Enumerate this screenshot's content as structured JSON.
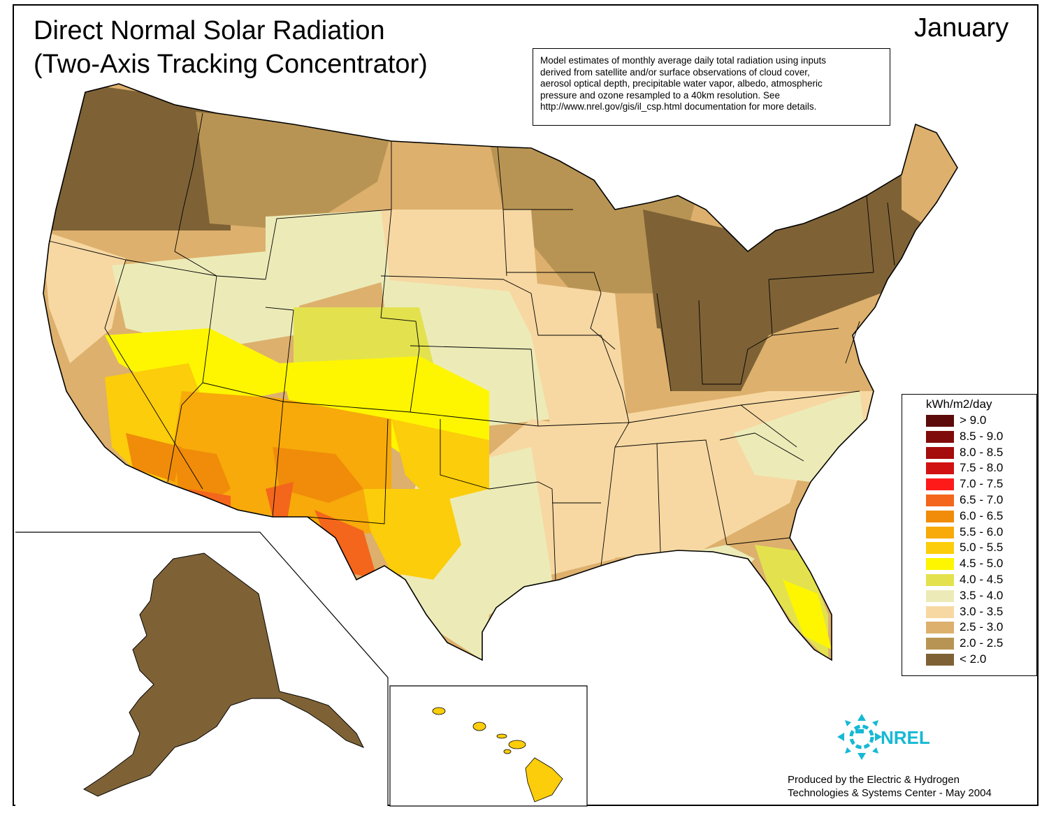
{
  "title_line1": "Direct Normal Solar Radiation",
  "title_line2": "(Two-Axis Tracking Concentrator)",
  "month": "January",
  "note_lines": [
    "Model estimates of monthly average daily total radiation using inputs",
    "derived from satellite and/or surface observations of cloud cover,",
    "aerosol optical depth, precipitable water vapor, albedo, atmospheric",
    "pressure and ozone resampled to a 40km resolution.  See",
    "http://www.nrel.gov/gis/il_csp.html documentation for more details."
  ],
  "legend": {
    "title": "kWh/m2/day",
    "items": [
      {
        "label": "> 9.0",
        "color": "#5c0a0a"
      },
      {
        "label": "8.5 - 9.0",
        "color": "#800b0b"
      },
      {
        "label": "8.0 - 8.5",
        "color": "#a50c0c"
      },
      {
        "label": "7.5 - 8.0",
        "color": "#d11212"
      },
      {
        "label": "7.0 - 7.5",
        "color": "#ff1a1a"
      },
      {
        "label": "6.5 - 7.0",
        "color": "#f4661c"
      },
      {
        "label": "6.0 - 6.5",
        "color": "#f08c0a"
      },
      {
        "label": "5.5 - 6.0",
        "color": "#f7aa0a"
      },
      {
        "label": "5.0 - 5.5",
        "color": "#fccd0a"
      },
      {
        "label": "4.5 - 5.0",
        "color": "#fdf600"
      },
      {
        "label": "4.0 - 4.5",
        "color": "#e3e24e"
      },
      {
        "label": "3.5 - 4.0",
        "color": "#ecebb8"
      },
      {
        "label": "3.0 - 3.5",
        "color": "#f7d8a2"
      },
      {
        "label": "2.5 - 3.0",
        "color": "#ddb06d"
      },
      {
        "label": "2.0 - 2.5",
        "color": "#b89454"
      },
      {
        "label": "< 2.0",
        "color": "#7e6236"
      }
    ]
  },
  "logo_text": "NREL",
  "logo_color": "#16b9d4",
  "producer_lines": [
    "Produced by the Electric & Hydrogen",
    "Technologies & Systems Center - May 2004"
  ]
}
